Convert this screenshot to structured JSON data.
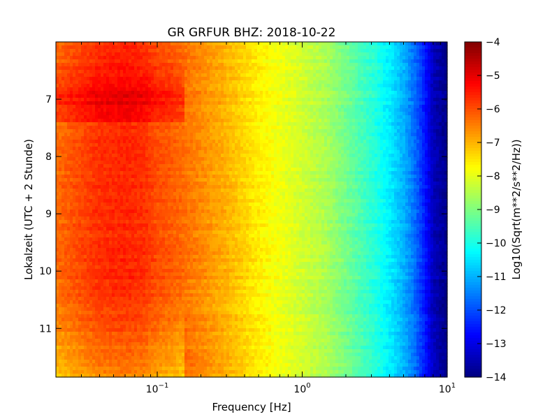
{
  "chart_data": {
    "type": "heatmap",
    "title": "GR GRFUR BHZ: 2018-10-22",
    "xlabel": "Frequency [Hz]",
    "ylabel": "Lokalzeit (UTC + 2 Stunde)",
    "colorbar_label": "Log10(Sqrt(m**2/s**2/Hz))",
    "x_scale": "log",
    "xlim": [
      0.02,
      10
    ],
    "x_ticks": [
      {
        "base": "10",
        "exp": "−1",
        "value": 0.1
      },
      {
        "base": "10",
        "exp": "0",
        "value": 1
      },
      {
        "base": "10",
        "exp": "1",
        "value": 10
      }
    ],
    "ylim": [
      6.0,
      11.85
    ],
    "y_inverted": true,
    "y_ticks": [
      "7",
      "8",
      "9",
      "10",
      "11"
    ],
    "clim": [
      -14,
      -4
    ],
    "colorbar_ticks": [
      "−4",
      "−5",
      "−6",
      "−7",
      "−8",
      "−9",
      "−10",
      "−11",
      "−12",
      "−13",
      "−14"
    ],
    "colormap": "jet",
    "grid": false,
    "spectrum_profile": {
      "frequency_hz": [
        0.02,
        0.04,
        0.06,
        0.08,
        0.1,
        0.12,
        0.15,
        0.2,
        0.3,
        0.5,
        0.7,
        1.0,
        1.5,
        2.0,
        3.0,
        4.0,
        5.0,
        6.0,
        7.0,
        8.0,
        10.0
      ],
      "level_log10": [
        -6.3,
        -5.7,
        -5.6,
        -5.7,
        -6.0,
        -6.1,
        -6.3,
        -6.6,
        -7.0,
        -7.6,
        -7.9,
        -8.2,
        -8.6,
        -9.1,
        -9.8,
        -10.4,
        -11.0,
        -11.7,
        -12.5,
        -13.4,
        -13.9
      ]
    }
  }
}
